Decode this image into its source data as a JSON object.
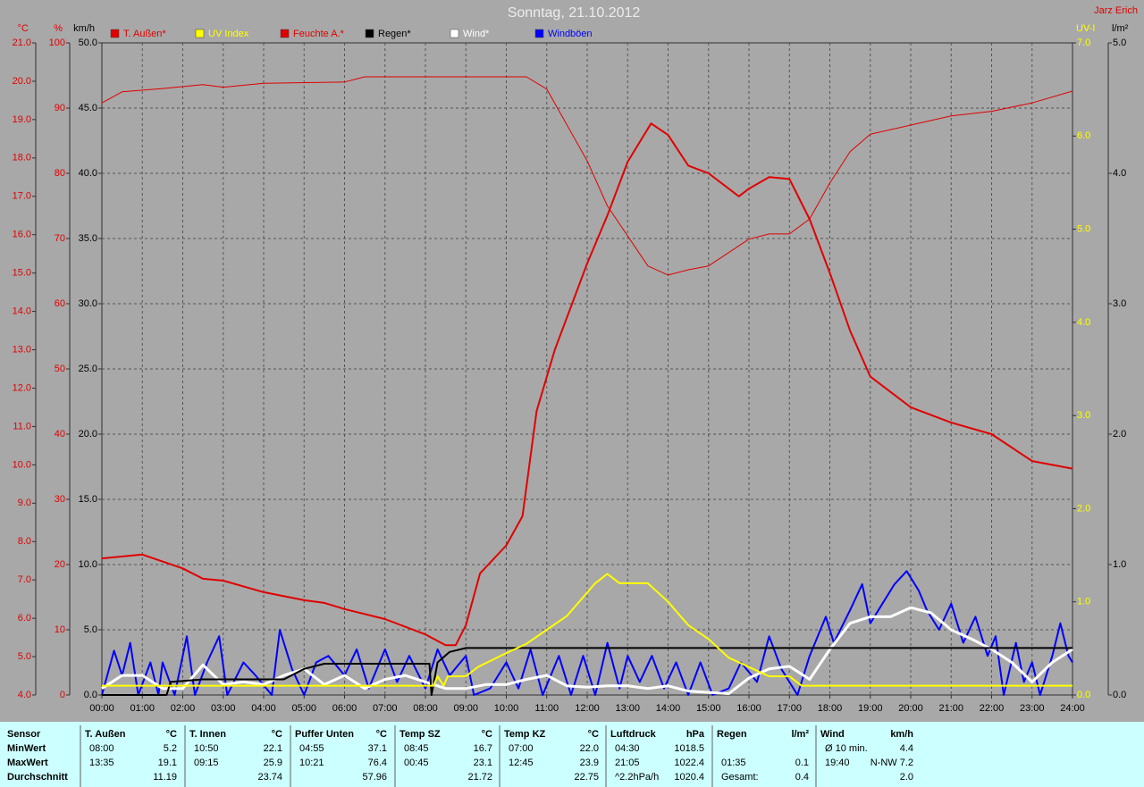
{
  "chart_data": {
    "type": "line",
    "title": "Sonntag, 21.10.2012",
    "author": "Jarz Erich",
    "xlim": [
      0,
      24
    ],
    "xticks": [
      {
        "value": 0,
        "label": "00:00"
      },
      {
        "value": 1,
        "label": "01:00"
      },
      {
        "value": 2,
        "label": "02:00"
      },
      {
        "value": 3,
        "label": "03:00"
      },
      {
        "value": 4,
        "label": "04:00"
      },
      {
        "value": 5,
        "label": "05:00"
      },
      {
        "value": 6,
        "label": "06:00"
      },
      {
        "value": 7,
        "label": "07:00"
      },
      {
        "value": 8,
        "label": "08:00"
      },
      {
        "value": 9,
        "label": "09:00"
      },
      {
        "value": 10,
        "label": "10:00"
      },
      {
        "value": 11,
        "label": "11:00"
      },
      {
        "value": 12,
        "label": "12:00"
      },
      {
        "value": 13,
        "label": "13:00"
      },
      {
        "value": 14,
        "label": "14:00"
      },
      {
        "value": 15,
        "label": "15:00"
      },
      {
        "value": 16,
        "label": "16:00"
      },
      {
        "value": 17,
        "label": "17:00"
      },
      {
        "value": 18,
        "label": "18:00"
      },
      {
        "value": 19,
        "label": "19:00"
      },
      {
        "value": 20,
        "label": "20:00"
      },
      {
        "value": 21,
        "label": "21:00"
      },
      {
        "value": 22,
        "label": "22:00"
      },
      {
        "value": 23,
        "label": "23:00"
      },
      {
        "value": 24,
        "label": "24:00"
      }
    ],
    "grid": true,
    "grid_axis": 2,
    "y_axes": [
      {
        "title": "°C",
        "color": "#e00000",
        "side": "left",
        "lim": [
          4,
          21
        ],
        "ticks": [
          {
            "value": 4,
            "label": "4.0"
          },
          {
            "value": 5,
            "label": "5.0"
          },
          {
            "value": 6,
            "label": "6.0"
          },
          {
            "value": 7,
            "label": "7.0"
          },
          {
            "value": 8,
            "label": "8.0"
          },
          {
            "value": 9,
            "label": "9.0"
          },
          {
            "value": 10,
            "label": "10.0"
          },
          {
            "value": 11,
            "label": "11.0"
          },
          {
            "value": 12,
            "label": "12.0"
          },
          {
            "value": 13,
            "label": "13.0"
          },
          {
            "value": 14,
            "label": "14.0"
          },
          {
            "value": 15,
            "label": "15.0"
          },
          {
            "value": 16,
            "label": "16.0"
          },
          {
            "value": 17,
            "label": "17.0"
          },
          {
            "value": 18,
            "label": "18.0"
          },
          {
            "value": 19,
            "label": "19.0"
          },
          {
            "value": 20,
            "label": "20.0"
          },
          {
            "value": 21,
            "label": "21.0"
          }
        ]
      },
      {
        "title": "%",
        "color": "#e00000",
        "side": "left",
        "lim": [
          0,
          100
        ],
        "ticks": [
          0,
          10,
          20,
          30,
          40,
          50,
          60,
          70,
          80,
          90,
          100
        ]
      },
      {
        "title": "km/h",
        "color": "#000000",
        "side": "left",
        "lim": [
          0,
          50
        ],
        "ticks": [
          {
            "value": 0,
            "label": "0.0"
          },
          {
            "value": 5,
            "label": "5.0"
          },
          {
            "value": 10,
            "label": "10.0"
          },
          {
            "value": 15,
            "label": "15.0"
          },
          {
            "value": 20,
            "label": "20.0"
          },
          {
            "value": 25,
            "label": "25.0"
          },
          {
            "value": 30,
            "label": "30.0"
          },
          {
            "value": 35,
            "label": "35.0"
          },
          {
            "value": 40,
            "label": "40.0"
          },
          {
            "value": 45,
            "label": "45.0"
          },
          {
            "value": 50,
            "label": "50.0"
          }
        ]
      },
      {
        "title": "UV-I",
        "color": "#ffff00",
        "side": "right",
        "lim": [
          0,
          7
        ],
        "ticks": [
          {
            "value": 0,
            "label": "0.0"
          },
          {
            "value": 1,
            "label": "1.0"
          },
          {
            "value": 2,
            "label": "2.0"
          },
          {
            "value": 3,
            "label": "3.0"
          },
          {
            "value": 4,
            "label": "4.0"
          },
          {
            "value": 5,
            "label": "5.0"
          },
          {
            "value": 6,
            "label": "6.0"
          },
          {
            "value": 7,
            "label": "7.0"
          }
        ]
      },
      {
        "title": "l/m²",
        "color": "#000000",
        "side": "right",
        "lim": [
          0,
          5
        ],
        "ticks": [
          {
            "value": 0,
            "label": "0.0"
          },
          {
            "value": 1,
            "label": "1.0"
          },
          {
            "value": 2,
            "label": "2.0"
          },
          {
            "value": 3,
            "label": "3.0"
          },
          {
            "value": 4,
            "label": "4.0"
          },
          {
            "value": 5,
            "label": "5.0"
          }
        ]
      }
    ],
    "series": [
      {
        "name": "T. Außen*",
        "color": "#e00000",
        "axis": 0,
        "line_width": 2,
        "x": [
          0,
          1,
          2,
          2.5,
          3,
          4,
          5,
          5.5,
          6,
          7,
          8,
          8.5,
          8.75,
          9,
          9.35,
          10,
          10.4,
          10.75,
          11.2,
          12,
          12.5,
          13,
          13.58,
          14,
          14.5,
          15,
          15.75,
          16,
          16.5,
          17,
          17.5,
          18,
          18.5,
          19,
          20,
          21,
          22,
          23,
          24
        ],
        "values": [
          7.56,
          7.66,
          7.3,
          7.03,
          6.98,
          6.68,
          6.47,
          6.4,
          6.24,
          5.98,
          5.58,
          5.3,
          5.3,
          5.82,
          7.17,
          7.9,
          8.66,
          11.4,
          13.0,
          15.25,
          16.5,
          17.9,
          18.9,
          18.6,
          17.8,
          17.6,
          17.0,
          17.2,
          17.5,
          17.45,
          16.4,
          15.0,
          13.5,
          12.3,
          11.5,
          11.1,
          10.8,
          10.1,
          9.9
        ]
      },
      {
        "name": "UV Index",
        "color": "#ffff00",
        "axis": 3,
        "line_width": 2,
        "x": [
          0,
          8.2,
          8.3,
          8.45,
          8.55,
          9,
          9.3,
          10,
          10.5,
          11,
          11.5,
          12,
          12.2,
          12.5,
          12.8,
          13.5,
          14,
          14.5,
          15,
          15.5,
          16,
          16.5,
          17,
          17.3,
          24
        ],
        "values": [
          0.1,
          0.1,
          0.2,
          0.1,
          0.2,
          0.2,
          0.3,
          0.45,
          0.55,
          0.7,
          0.85,
          1.1,
          1.2,
          1.3,
          1.2,
          1.2,
          1.0,
          0.75,
          0.6,
          0.4,
          0.3,
          0.2,
          0.2,
          0.1,
          0.1
        ]
      },
      {
        "name": "Feuchte A.*",
        "color": "#e00000",
        "axis": 1,
        "line_width": 1,
        "x": [
          0,
          0.5,
          1.5,
          2.5,
          3,
          4,
          6,
          6.5,
          10.5,
          11,
          12,
          12.5,
          13.5,
          14,
          14.5,
          15,
          16,
          16.5,
          17,
          17.5,
          18,
          18.5,
          19,
          20,
          21,
          22,
          23,
          24
        ],
        "values": [
          90.8,
          92.5,
          93,
          93.6,
          93.2,
          93.8,
          94,
          94.8,
          94.8,
          92.9,
          81.9,
          75,
          65.8,
          64.4,
          65.2,
          65.8,
          69.9,
          70.7,
          70.7,
          73,
          78.5,
          83.3,
          86,
          87.4,
          88.8,
          89.5,
          90.8,
          92.6
        ]
      },
      {
        "name": "Regen*",
        "color": "#000000",
        "axis": 4,
        "line_width": 2,
        "x": [
          0,
          1.6,
          1.7,
          2.5,
          4.5,
          5,
          5.5,
          8.1,
          8.15,
          8.3,
          8.6,
          9,
          24
        ],
        "values": [
          0,
          0,
          0.1,
          0.12,
          0.12,
          0.2,
          0.24,
          0.24,
          0,
          0.25,
          0.33,
          0.36,
          0.36
        ]
      },
      {
        "name": "Wind*",
        "color": "#ffffff",
        "axis": 2,
        "line_width": 3,
        "x": [
          0,
          0.5,
          1,
          1.5,
          2,
          2.5,
          3,
          3.5,
          4,
          4.5,
          5,
          5.5,
          6,
          6.5,
          7,
          7.5,
          8,
          8.5,
          9,
          9.5,
          10,
          10.5,
          11,
          11.5,
          12,
          12.5,
          13,
          13.5,
          14,
          14.5,
          15,
          15.5,
          16,
          16.5,
          17,
          17.5,
          18,
          18.5,
          19,
          19.5,
          20,
          20.5,
          21,
          21.5,
          22,
          22.5,
          23,
          23.5,
          24
        ],
        "values": [
          0.5,
          1.5,
          1.5,
          0.5,
          0.5,
          2.3,
          0.8,
          1.0,
          0.8,
          1.5,
          2,
          0.8,
          1.5,
          0.5,
          1.2,
          1.5,
          1,
          0.5,
          0.5,
          0.8,
          0.8,
          1.2,
          1.5,
          0.7,
          0.6,
          0.7,
          0.7,
          0.5,
          0.7,
          0.3,
          0.2,
          0.1,
          1.3,
          2,
          2.2,
          1.2,
          3.5,
          5.5,
          6,
          6,
          6.7,
          6.3,
          5,
          4.3,
          3.5,
          2.5,
          1,
          2.5,
          3.5
        ]
      },
      {
        "name": "Windböen",
        "color": "#0000ff",
        "axis": 2,
        "line_width": 2,
        "x": [
          0,
          0.3,
          0.5,
          0.7,
          0.9,
          1.2,
          1.4,
          1.5,
          1.8,
          2.1,
          2.3,
          2.6,
          2.9,
          3.1,
          3.5,
          3.8,
          4.2,
          4.4,
          4.7,
          5,
          5.3,
          5.6,
          6,
          6.3,
          6.6,
          7,
          7.3,
          7.6,
          8,
          8.3,
          8.6,
          9,
          9.2,
          9.6,
          10,
          10.3,
          10.6,
          10.9,
          11.3,
          11.6,
          11.9,
          12.2,
          12.5,
          12.8,
          13,
          13.3,
          13.6,
          13.9,
          14.2,
          14.5,
          14.8,
          15.1,
          15.5,
          15.8,
          16.2,
          16.5,
          16.8,
          17.2,
          17.5,
          17.9,
          18.1,
          18.5,
          18.8,
          19,
          19.3,
          19.6,
          19.9,
          20.2,
          20.4,
          20.7,
          21,
          21.3,
          21.6,
          21.9,
          22.1,
          22.3,
          22.6,
          22.8,
          23,
          23.2,
          23.5,
          23.7,
          23.9,
          24
        ],
        "values": [
          0,
          3.4,
          1.5,
          4,
          0,
          2.5,
          0,
          2.5,
          0,
          4.5,
          0,
          2.5,
          4.5,
          0,
          2.5,
          1.5,
          0,
          5,
          2,
          0,
          2.5,
          3,
          1.5,
          3.5,
          0.5,
          3.5,
          1,
          3,
          0.5,
          3.5,
          1.5,
          3,
          0,
          0.5,
          2.5,
          0.5,
          3.5,
          0,
          3,
          0,
          3,
          0,
          4,
          0.5,
          3,
          1,
          3,
          0.5,
          2.5,
          0,
          2.5,
          0,
          0.5,
          2.5,
          1,
          4.5,
          2,
          0,
          3,
          6,
          4,
          6.5,
          8.5,
          5.5,
          7,
          8.5,
          9.5,
          8,
          6.5,
          5,
          7,
          4,
          6,
          3,
          4.5,
          0,
          4,
          1,
          2.5,
          0,
          3,
          5.5,
          3,
          2.5
        ]
      }
    ]
  },
  "table": {
    "corner": "Sensor",
    "columns": [
      {
        "name": "T. Außen",
        "unit": "°C"
      },
      {
        "name": "T. Innen",
        "unit": "°C"
      },
      {
        "name": "Puffer Unten",
        "unit": "°C"
      },
      {
        "name": "Temp SZ",
        "unit": "°C"
      },
      {
        "name": "Temp KZ",
        "unit": "°C"
      },
      {
        "name": "Luftdruck",
        "unit": "hPa"
      },
      {
        "name": "Regen",
        "unit": "l/m²"
      },
      {
        "name": "Wind",
        "unit": "km/h"
      }
    ],
    "rows": [
      {
        "label": "MinWert",
        "cells": [
          [
            "08:00",
            "5.2"
          ],
          [
            "10:50",
            "22.1"
          ],
          [
            "04:55",
            "37.1"
          ],
          [
            "08:45",
            "16.7"
          ],
          [
            "07:00",
            "22.0"
          ],
          [
            "04:30",
            "1018.5"
          ],
          [
            null,
            null
          ],
          [
            "Ø 10 min.",
            "4.4"
          ]
        ]
      },
      {
        "label": "MaxWert",
        "cells": [
          [
            "13:35",
            "19.1"
          ],
          [
            "09:15",
            "25.9"
          ],
          [
            "10:21",
            "76.4"
          ],
          [
            "00:45",
            "23.1"
          ],
          [
            "12:45",
            "23.9"
          ],
          [
            "21:05",
            "1022.4"
          ],
          [
            "01:35",
            "0.1"
          ],
          [
            "19:40",
            "N-NW 7.2"
          ]
        ]
      },
      {
        "label": "Durchschnitt",
        "cells": [
          [
            null,
            "11.19"
          ],
          [
            null,
            "23.74"
          ],
          [
            null,
            "57.96"
          ],
          [
            null,
            "21.72"
          ],
          [
            null,
            "22.75"
          ],
          [
            "^2.2hPa/h",
            "1020.4"
          ],
          [
            "Gesamt:",
            "0.4"
          ],
          [
            null,
            "2.0"
          ]
        ]
      }
    ]
  }
}
